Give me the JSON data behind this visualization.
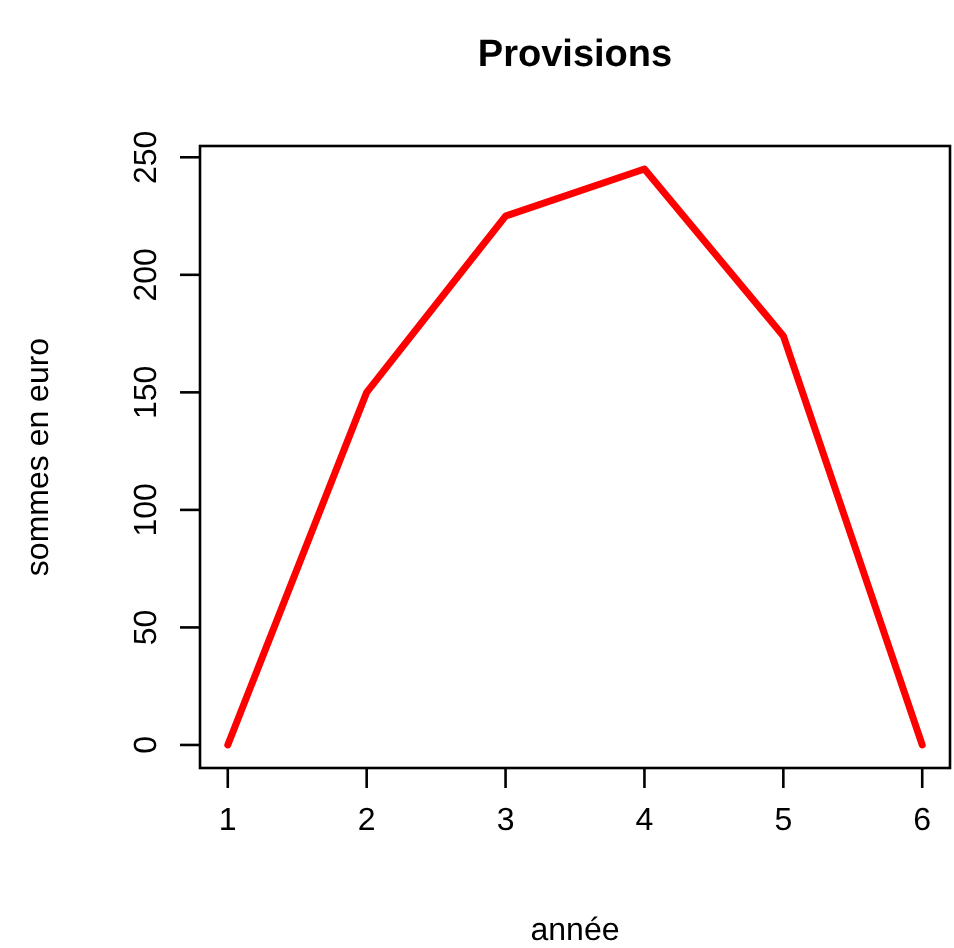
{
  "chart_data": {
    "type": "line",
    "title": "Provisions",
    "xlabel": "année",
    "ylabel": "sommes en euro",
    "x": [
      1,
      2,
      3,
      4,
      5,
      6
    ],
    "series": [
      {
        "color": "#ff0000",
        "values": [
          0,
          150,
          225,
          245,
          174,
          0
        ]
      }
    ],
    "xlim": [
      0.8,
      6.2
    ],
    "xticks": [
      1,
      2,
      3,
      4,
      5,
      6
    ],
    "ylim": [
      -9.8,
      254.8
    ],
    "yticks": [
      0,
      50,
      100,
      150,
      200,
      250
    ],
    "grid": false,
    "marker": "none",
    "line_style": "solid"
  }
}
